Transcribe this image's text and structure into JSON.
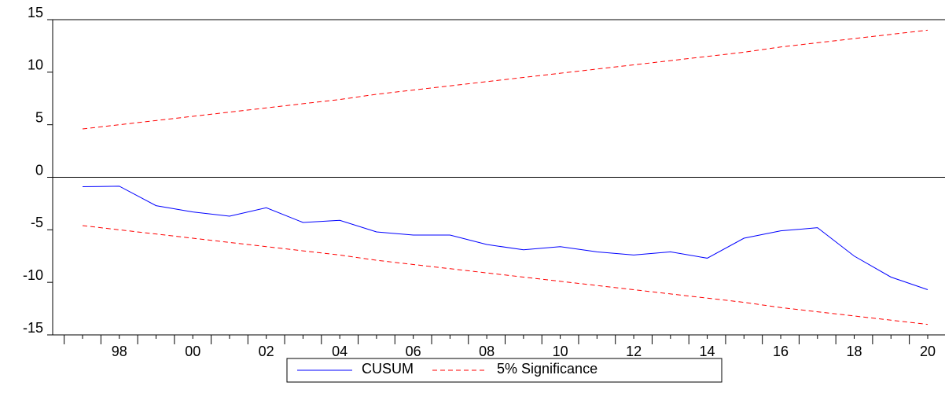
{
  "chart_data": {
    "type": "line",
    "categories": [
      null,
      "98",
      null,
      "00",
      null,
      "02",
      null,
      "04",
      null,
      "06",
      null,
      "08",
      null,
      "10",
      null,
      "12",
      null,
      "14",
      null,
      "16",
      null,
      "18",
      null,
      "20"
    ],
    "series": [
      {
        "name": "CUSUM",
        "color": "#0000ff",
        "dashed": false,
        "values": [
          -0.9,
          -0.85,
          -2.7,
          -3.3,
          -3.7,
          -2.9,
          -4.3,
          -4.1,
          -5.2,
          -5.5,
          -5.5,
          -6.4,
          -6.9,
          -6.6,
          -7.1,
          -7.4,
          -7.1,
          -7.7,
          -5.8,
          -5.1,
          -4.8,
          -7.5,
          -9.5,
          -10.7
        ]
      },
      {
        "name": "5% Significance",
        "color": "#ff0000",
        "dashed": true,
        "values": [
          4.6,
          5.0,
          5.4,
          5.8,
          6.2,
          6.6,
          7.0,
          7.4,
          7.9,
          8.3,
          8.7,
          9.1,
          9.5,
          9.9,
          10.3,
          10.7,
          11.1,
          11.5,
          11.9,
          12.4,
          12.8,
          13.2,
          13.6,
          14.0
        ]
      },
      {
        "color": "#ff0000",
        "dashed": true,
        "values": [
          -4.6,
          -5.0,
          -5.4,
          -5.8,
          -6.2,
          -6.6,
          -7.0,
          -7.4,
          -7.9,
          -8.3,
          -8.7,
          -9.1,
          -9.5,
          -9.9,
          -10.3,
          -10.7,
          -11.1,
          -11.5,
          -11.9,
          -12.4,
          -12.8,
          -13.2,
          -13.6,
          -14.0
        ]
      }
    ],
    "ylim": [
      -15,
      15
    ],
    "yticks": [
      -15,
      -10,
      -5,
      0,
      5,
      10,
      15
    ],
    "zero_line": true
  }
}
